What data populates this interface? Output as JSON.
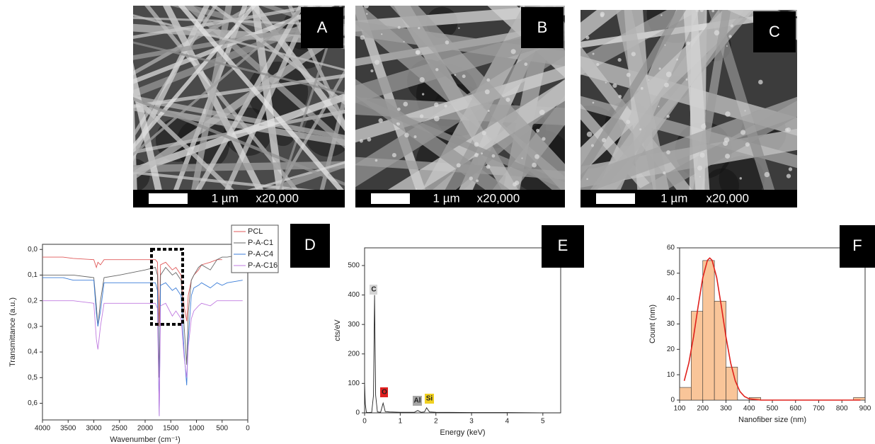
{
  "panels": [
    {
      "label": "A",
      "scale_bar": "1 µm",
      "magnification": "x20,000"
    },
    {
      "label": "B",
      "scale_bar": "1 µm",
      "magnification": "x20,000"
    },
    {
      "label": "C",
      "scale_bar": "1 µm",
      "magnification": "x20,000"
    }
  ],
  "chart_data": [
    {
      "type": "line",
      "panel_label": "D",
      "xlabel": "Wavenumber (cm⁻¹)",
      "ylabel": "Transmittance (a.u.)",
      "xlim": [
        4000,
        0
      ],
      "xticks": [
        4000,
        3500,
        3000,
        2500,
        2000,
        1500,
        1000,
        500,
        0
      ],
      "ylim": [
        0.665,
        -0.02
      ],
      "yticks": [
        {
          "value": 0,
          "label": "0,0"
        },
        {
          "value": 0.1,
          "label": "0,1"
        },
        {
          "value": 0.2,
          "label": "0,2"
        },
        {
          "value": 0.3,
          "label": "0,3"
        },
        {
          "value": 0.4,
          "label": "0,4"
        },
        {
          "value": 0.5,
          "label": "0,5"
        },
        {
          "value": 0.6,
          "label": "0,6"
        }
      ],
      "legend": "upper right",
      "x": [
        4000,
        3600,
        3400,
        3000,
        2950,
        2920,
        2870,
        2800,
        2500,
        2000,
        1800,
        1760,
        1725,
        1700,
        1600,
        1470,
        1400,
        1300,
        1240,
        1190,
        1160,
        1100,
        1050,
        960,
        900,
        730,
        600,
        500,
        400,
        100
      ],
      "series": [
        {
          "name": "PCL",
          "color": "#e05a5a",
          "values": [
            0.03,
            0.03,
            0.035,
            0.04,
            0.07,
            0.05,
            0.06,
            0.04,
            0.04,
            0.04,
            0.04,
            0.05,
            0.3,
            0.06,
            0.05,
            0.08,
            0.07,
            0.1,
            0.22,
            0.28,
            0.18,
            0.12,
            0.1,
            0.08,
            0.06,
            0.05,
            0.04,
            0.04,
            null,
            null
          ]
        },
        {
          "name": "P-A-C1",
          "color": "#666666",
          "values": [
            0.1,
            0.1,
            0.1,
            0.11,
            0.22,
            0.3,
            0.2,
            0.11,
            0.1,
            0.08,
            0.07,
            0.1,
            0.5,
            0.1,
            0.07,
            0.1,
            0.09,
            0.12,
            0.3,
            0.45,
            0.25,
            0.12,
            0.1,
            0.07,
            0.06,
            0.08,
            0.04,
            0.03,
            0.03,
            0.02
          ]
        },
        {
          "name": "P-A-C4",
          "color": "#3b7dd8",
          "values": [
            0.11,
            0.11,
            0.12,
            0.12,
            0.25,
            0.3,
            0.24,
            0.13,
            0.13,
            0.13,
            0.13,
            0.16,
            0.65,
            0.14,
            0.13,
            0.16,
            0.15,
            0.18,
            0.4,
            0.53,
            0.35,
            0.18,
            0.15,
            0.14,
            0.13,
            0.15,
            0.13,
            0.14,
            0.13,
            0.12
          ]
        },
        {
          "name": "P-A-C16",
          "color": "#c07be0",
          "values": [
            0.2,
            0.2,
            0.2,
            0.21,
            0.35,
            0.39,
            0.3,
            0.21,
            0.21,
            0.21,
            0.21,
            0.23,
            0.65,
            0.22,
            0.21,
            0.26,
            0.24,
            0.27,
            0.42,
            0.5,
            0.38,
            0.27,
            0.24,
            0.22,
            0.21,
            0.22,
            0.2,
            0.2,
            0.2,
            0.2
          ]
        }
      ]
    },
    {
      "type": "line",
      "panel_label": "E",
      "xlabel": "Energy (keV)",
      "ylabel": "cts/eV",
      "xlim": [
        0,
        5.5
      ],
      "xticks": [
        0,
        1,
        2,
        3,
        4,
        5
      ],
      "ylim": [
        0,
        560
      ],
      "yticks": [
        0,
        100,
        200,
        300,
        400,
        500
      ],
      "x": [
        0,
        0.02,
        0.05,
        0.1,
        0.2,
        0.25,
        0.28,
        0.31,
        0.36,
        0.45,
        0.52,
        0.58,
        0.7,
        1.0,
        1.4,
        1.49,
        1.58,
        1.68,
        1.74,
        1.82,
        2.0,
        3,
        4,
        5,
        5.5
      ],
      "series": [
        {
          "color": "#222222",
          "values": [
            100,
            30,
            2,
            1,
            2,
            60,
            400,
            60,
            3,
            2,
            33,
            4,
            3,
            2,
            2,
            8,
            2,
            3,
            17,
            3,
            2,
            1,
            1,
            0,
            0
          ]
        }
      ],
      "annotations": [
        {
          "text": "C",
          "color": "#d4d4d4"
        },
        {
          "text": "O",
          "color": "#e02020"
        },
        {
          "text": "Al",
          "color": "#a6a6a6"
        },
        {
          "text": "Si",
          "color": "#f0d020"
        }
      ]
    },
    {
      "type": "histogram",
      "panel_label": "F",
      "xlabel": "Nanofiber size (nm)",
      "ylabel": "Count (nm)",
      "xlim": [
        100,
        900
      ],
      "xticks": [
        100,
        200,
        300,
        400,
        500,
        600,
        700,
        800,
        900
      ],
      "ylim": [
        0,
        60
      ],
      "yticks": [
        0,
        10,
        20,
        30,
        40,
        50,
        60
      ],
      "bins": [
        100,
        150,
        200,
        250,
        300,
        350,
        400,
        450,
        500,
        550,
        600,
        650,
        700,
        750,
        800,
        850,
        900
      ],
      "values": [
        5,
        35,
        55,
        39,
        13,
        0,
        1,
        0,
        0,
        0,
        0,
        0,
        0,
        0,
        0,
        1
      ],
      "color": "#f9c599",
      "edgecolor": "#333333",
      "fit": {
        "color": "#e0201b",
        "x": [
          120,
          140,
          160,
          180,
          200,
          220,
          230,
          240,
          260,
          280,
          300,
          320,
          340,
          360,
          380,
          400,
          450,
          500,
          600,
          700,
          800,
          880
        ],
        "values": [
          7.6,
          14.7,
          24.9,
          37,
          48.3,
          55.1,
          56,
          55.1,
          48.3,
          37,
          24.9,
          14.7,
          7.6,
          3.4,
          1.4,
          0.5,
          0,
          0,
          0,
          0,
          0,
          0
        ]
      }
    }
  ]
}
